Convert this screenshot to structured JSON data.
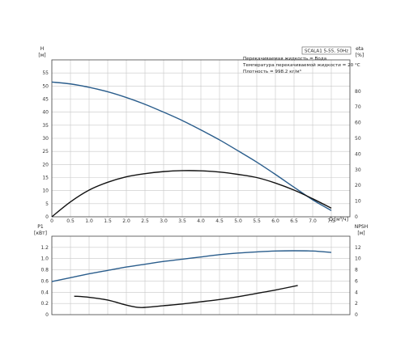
{
  "chart_data": [
    {
      "type": "line",
      "panel": "top",
      "model_label": "SCALA1 5-55, 50Hz",
      "info_lines": [
        "Перекачиваемая жидкость = Вода",
        "Температура перекачиваемой жидкости = 20 °C",
        "Плотность = 998.2 кг/м³"
      ],
      "ylabel_left": [
        "H",
        "[м]"
      ],
      "ylabel_right": [
        "eta",
        "[%]"
      ],
      "xlabel": "Q [м³/ч]",
      "xlim": [
        0,
        8.0
      ],
      "x_ticks": [
        "0",
        "0.5",
        "1.0",
        "1.5",
        "2.0",
        "2.5",
        "3.0",
        "3.5",
        "4.0",
        "4.5",
        "5.0",
        "5.5",
        "6.0",
        "6.5",
        "7.0",
        "7.5"
      ],
      "ylim_left": [
        0,
        60
      ],
      "ylim_right": [
        0,
        100
      ],
      "y_ticks_left": [
        "0",
        "5",
        "10",
        "15",
        "20",
        "25",
        "30",
        "35",
        "40",
        "45",
        "50",
        "55"
      ],
      "y_ticks_right": [
        "0",
        "10",
        "20",
        "30",
        "40",
        "50",
        "60",
        "70",
        "80"
      ],
      "grid": true,
      "series": [
        {
          "axis": "left",
          "color": "#2a5d8c",
          "x": [
            0,
            0.5,
            1.0,
            1.5,
            2.0,
            2.5,
            3.0,
            3.5,
            4.0,
            4.5,
            5.0,
            5.5,
            6.0,
            6.5,
            7.0,
            7.5
          ],
          "y": [
            51.5,
            50.8,
            49.5,
            47.8,
            45.6,
            43.0,
            40.0,
            36.8,
            33.2,
            29.4,
            25.2,
            20.9,
            16.2,
            11.3,
            6.5,
            2.4
          ]
        },
        {
          "axis": "right",
          "color": "#111111",
          "x": [
            0,
            0.5,
            1.0,
            1.5,
            2.0,
            2.5,
            3.0,
            3.5,
            4.0,
            4.5,
            5.0,
            5.5,
            6.0,
            6.5,
            7.0,
            7.5
          ],
          "y": [
            0,
            9.5,
            17.0,
            22.0,
            25.5,
            27.5,
            28.8,
            29.4,
            29.3,
            28.5,
            27.0,
            25.0,
            21.5,
            17.0,
            11.5,
            5.5
          ]
        }
      ]
    },
    {
      "type": "line",
      "panel": "bottom",
      "ylabel_left": [
        "P1",
        "[кВт]"
      ],
      "ylabel_right": [
        "NPSH",
        "[м]"
      ],
      "xlim": [
        0,
        8.0
      ],
      "ylim_left": [
        0,
        1.4
      ],
      "ylim_right": [
        0,
        14
      ],
      "y_ticks_left": [
        "0",
        "0.2",
        "0.4",
        "0.6",
        "0.8",
        "1.0",
        "1.2"
      ],
      "y_ticks_right": [
        "0",
        "2",
        "4",
        "6",
        "8",
        "10",
        "12"
      ],
      "grid": true,
      "series": [
        {
          "axis": "left",
          "color": "#2a5d8c",
          "x": [
            0,
            0.5,
            1.0,
            1.5,
            2.0,
            2.5,
            3.0,
            3.5,
            4.0,
            4.5,
            5.0,
            5.5,
            6.0,
            6.5,
            7.0,
            7.5
          ],
          "y": [
            0.59,
            0.66,
            0.73,
            0.79,
            0.85,
            0.9,
            0.95,
            0.99,
            1.03,
            1.07,
            1.1,
            1.12,
            1.135,
            1.14,
            1.135,
            1.11
          ]
        },
        {
          "axis": "right",
          "color": "#111111",
          "x": [
            0.6,
            1.0,
            1.5,
            2.0,
            2.3,
            2.5,
            3.0,
            3.5,
            4.0,
            4.5,
            5.0,
            5.5,
            6.0,
            6.6
          ],
          "y": [
            3.3,
            3.1,
            2.6,
            1.7,
            1.3,
            1.3,
            1.6,
            1.9,
            2.3,
            2.7,
            3.2,
            3.8,
            4.4,
            5.2
          ]
        }
      ]
    }
  ]
}
